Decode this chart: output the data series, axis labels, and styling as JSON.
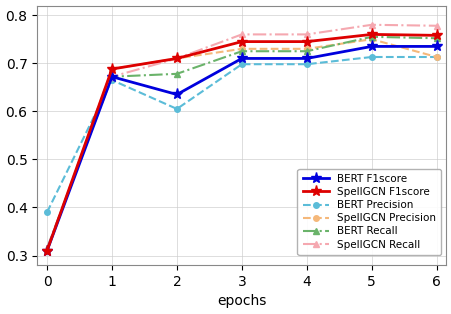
{
  "epochs": [
    0,
    1,
    2,
    3,
    4,
    5,
    6
  ],
  "bert_f1": [
    0.31,
    0.672,
    0.635,
    0.71,
    0.71,
    0.735,
    0.735
  ],
  "spellgcn_f1": [
    0.31,
    0.688,
    0.71,
    0.745,
    0.745,
    0.76,
    0.758
  ],
  "bert_precision": [
    0.39,
    0.665,
    0.605,
    0.698,
    0.698,
    0.713,
    0.713
  ],
  "spellgcn_precision": [
    0.31,
    0.688,
    0.71,
    0.73,
    0.73,
    0.75,
    0.713
  ],
  "bert_recall": [
    0.315,
    0.672,
    0.678,
    0.725,
    0.725,
    0.755,
    0.752
  ],
  "spellgcn_recall": [
    0.315,
    0.672,
    0.71,
    0.76,
    0.76,
    0.78,
    0.778
  ],
  "bert_f1_color": "#0000dd",
  "spellgcn_f1_color": "#dd0000",
  "bert_precision_color": "#5bbcd8",
  "spellgcn_precision_color": "#f5b87a",
  "bert_recall_color": "#6ab36a",
  "spellgcn_recall_color": "#f5a8b0",
  "xlabel": "epochs",
  "ylim": [
    0.28,
    0.82
  ],
  "xlim": [
    -0.15,
    6.15
  ],
  "yticks": [
    0.3,
    0.4,
    0.5,
    0.6,
    0.7,
    0.8
  ],
  "xticks": [
    0,
    1,
    2,
    3,
    4,
    5,
    6
  ]
}
